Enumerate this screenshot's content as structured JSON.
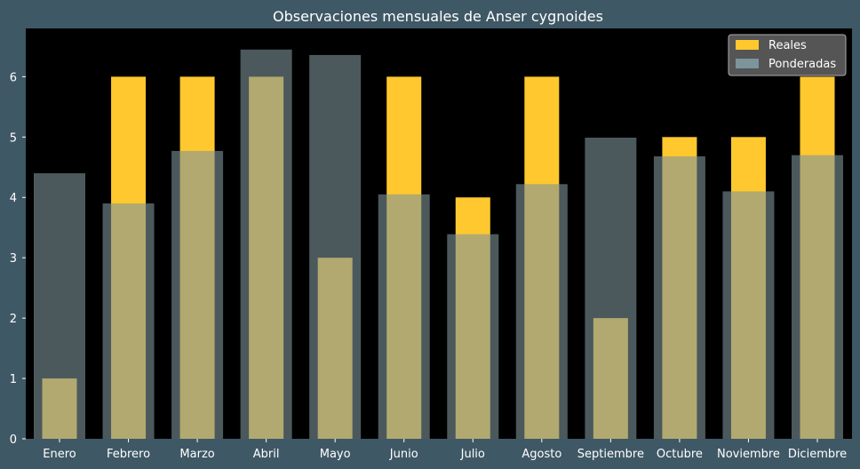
{
  "chart_data": {
    "type": "bar",
    "title": "Observaciones mensuales de Anser cygnoides",
    "xlabel": "",
    "ylabel": "",
    "categories": [
      "Enero",
      "Febrero",
      "Marzo",
      "Abril",
      "Mayo",
      "Junio",
      "Julio",
      "Agosto",
      "Septiembre",
      "Octubre",
      "Noviembre",
      "Diciembre"
    ],
    "series": [
      {
        "name": "Reales",
        "values": [
          1,
          6,
          6,
          6,
          3,
          6,
          4,
          6,
          2,
          5,
          5,
          6
        ],
        "color": "#ffc82e"
      },
      {
        "name": "Ponderadas",
        "values": [
          4.4,
          3.9,
          4.77,
          6.45,
          6.36,
          4.05,
          3.39,
          4.22,
          4.99,
          4.68,
          4.1,
          4.7
        ],
        "color": "#7d949b"
      }
    ],
    "ylim": [
      0,
      6.8
    ],
    "yticks": [
      0,
      1,
      2,
      3,
      4,
      5,
      6
    ],
    "legend": "top-right",
    "grid": false,
    "colors": {
      "background": "#3f5866",
      "plot_background": "#000000",
      "overlap": "#d6d08c"
    }
  }
}
